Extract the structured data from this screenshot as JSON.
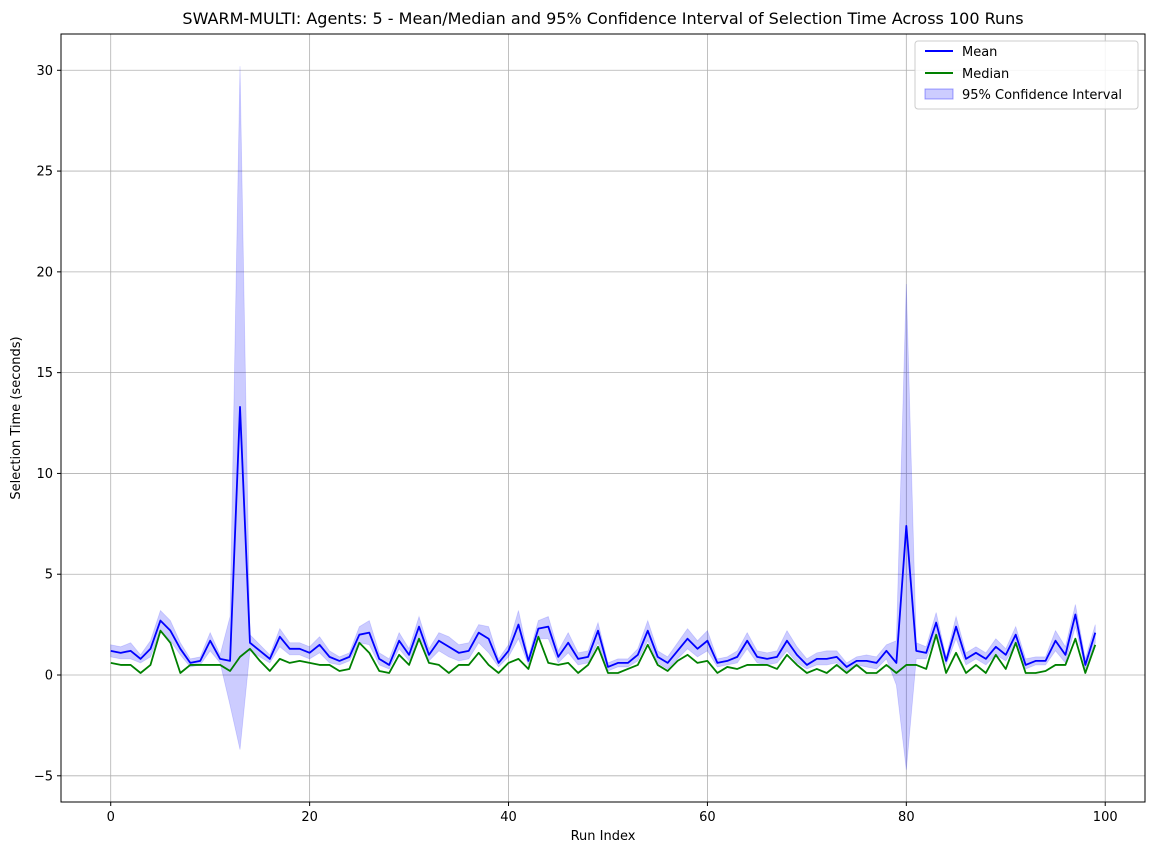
{
  "chart_data": {
    "type": "line",
    "title": "SWARM-MULTI: Agents: 5 - Mean/Median and 95% Confidence Interval of Selection Time Across 100 Runs",
    "xlabel": "Run Index",
    "ylabel": "Selection Time (seconds)",
    "xlim": [
      -5,
      104
    ],
    "ylim": [
      -6.3,
      31.8
    ],
    "xticks": [
      0,
      20,
      40,
      60,
      80,
      100
    ],
    "yticks": [
      -5,
      0,
      5,
      10,
      15,
      20,
      25,
      30
    ],
    "ytick_labels": [
      "−5",
      "0",
      "5",
      "10",
      "15",
      "20",
      "25",
      "30"
    ],
    "grid": true,
    "legend_position": "top-right",
    "colors": {
      "mean": "#0000ff",
      "median": "#008000",
      "ci_fill": "#0000ff"
    },
    "series": [
      {
        "name": "Mean",
        "values": [
          1.2,
          1.1,
          1.2,
          0.8,
          1.3,
          2.7,
          2.2,
          1.3,
          0.6,
          0.7,
          1.7,
          0.8,
          0.7,
          13.3,
          1.6,
          1.2,
          0.8,
          1.9,
          1.3,
          1.3,
          1.1,
          1.5,
          0.9,
          0.7,
          0.9,
          2.0,
          2.1,
          0.8,
          0.5,
          1.7,
          1.0,
          2.4,
          1.0,
          1.7,
          1.4,
          1.1,
          1.2,
          2.1,
          1.8,
          0.6,
          1.2,
          2.5,
          0.7,
          2.3,
          2.4,
          0.9,
          1.6,
          0.8,
          0.9,
          2.2,
          0.4,
          0.6,
          0.6,
          1.0,
          2.2,
          0.9,
          0.6,
          1.2,
          1.8,
          1.3,
          1.7,
          0.6,
          0.7,
          0.9,
          1.7,
          0.9,
          0.8,
          0.9,
          1.7,
          1.0,
          0.5,
          0.8,
          0.8,
          0.9,
          0.4,
          0.7,
          0.7,
          0.6,
          1.2,
          0.6,
          7.4,
          1.2,
          1.1,
          2.6,
          0.7,
          2.4,
          0.8,
          1.1,
          0.8,
          1.4,
          1.0,
          2.0,
          0.5,
          0.7,
          0.7,
          1.7,
          1.0,
          3.0,
          0.5,
          2.1
        ]
      },
      {
        "name": "Median",
        "values": [
          0.6,
          0.5,
          0.5,
          0.1,
          0.5,
          2.2,
          1.6,
          0.1,
          0.5,
          0.5,
          0.5,
          0.5,
          0.2,
          0.9,
          1.3,
          0.7,
          0.2,
          0.8,
          0.6,
          0.7,
          0.6,
          0.5,
          0.5,
          0.2,
          0.3,
          1.6,
          1.1,
          0.2,
          0.1,
          1.0,
          0.5,
          1.8,
          0.6,
          0.5,
          0.1,
          0.5,
          0.5,
          1.1,
          0.5,
          0.1,
          0.6,
          0.8,
          0.3,
          1.9,
          0.6,
          0.5,
          0.6,
          0.1,
          0.5,
          1.4,
          0.1,
          0.1,
          0.3,
          0.5,
          1.5,
          0.5,
          0.2,
          0.7,
          1.0,
          0.6,
          0.7,
          0.1,
          0.4,
          0.3,
          0.5,
          0.5,
          0.5,
          0.3,
          1.0,
          0.5,
          0.1,
          0.3,
          0.1,
          0.5,
          0.1,
          0.5,
          0.1,
          0.1,
          0.5,
          0.1,
          0.5,
          0.5,
          0.3,
          2.0,
          0.1,
          1.1,
          0.1,
          0.5,
          0.1,
          1.0,
          0.3,
          1.6,
          0.1,
          0.1,
          0.2,
          0.5,
          0.5,
          1.8,
          0.1,
          1.5
        ]
      },
      {
        "name": "95% Confidence Interval",
        "lower": [
          0.9,
          0.8,
          0.8,
          0.6,
          0.9,
          2.2,
          1.7,
          1.0,
          0.4,
          0.5,
          1.2,
          0.6,
          -1.5,
          -3.7,
          1.2,
          0.9,
          0.6,
          1.4,
          1.0,
          1.0,
          0.8,
          1.1,
          0.6,
          0.5,
          0.7,
          1.6,
          1.5,
          0.5,
          0.3,
          1.3,
          0.7,
          1.8,
          0.7,
          1.2,
          0.9,
          0.7,
          0.8,
          1.6,
          1.1,
          0.4,
          0.9,
          1.8,
          0.5,
          1.8,
          1.8,
          0.6,
          1.1,
          0.5,
          0.6,
          1.6,
          0.2,
          0.4,
          0.4,
          0.7,
          1.7,
          0.6,
          0.3,
          0.8,
          1.3,
          0.9,
          1.2,
          0.4,
          0.5,
          0.6,
          1.3,
          0.6,
          0.5,
          0.6,
          1.2,
          0.6,
          0.3,
          0.5,
          0.5,
          0.6,
          0.2,
          0.5,
          0.4,
          0.3,
          0.8,
          -0.5,
          -4.7,
          0.8,
          0.8,
          2.0,
          0.5,
          1.8,
          0.5,
          0.8,
          0.5,
          1.0,
          0.7,
          1.5,
          0.3,
          0.5,
          0.5,
          1.2,
          0.6,
          2.4,
          0.3,
          1.6
        ],
        "upper": [
          1.5,
          1.4,
          1.6,
          1.0,
          1.7,
          3.2,
          2.7,
          1.6,
          0.8,
          0.9,
          2.1,
          1.0,
          2.9,
          30.2,
          2.0,
          1.5,
          1.0,
          2.3,
          1.6,
          1.6,
          1.4,
          1.9,
          1.2,
          0.9,
          1.1,
          2.4,
          2.7,
          1.1,
          0.8,
          2.1,
          1.3,
          2.9,
          1.3,
          2.1,
          1.9,
          1.5,
          1.6,
          2.5,
          2.4,
          0.8,
          1.5,
          3.2,
          0.9,
          2.7,
          2.9,
          1.2,
          2.1,
          1.1,
          1.2,
          2.6,
          0.6,
          0.8,
          0.8,
          1.3,
          2.7,
          1.2,
          0.9,
          1.6,
          2.3,
          1.7,
          2.2,
          0.8,
          0.9,
          1.2,
          2.1,
          1.2,
          1.1,
          1.2,
          2.2,
          1.4,
          0.8,
          1.1,
          1.2,
          1.2,
          0.6,
          0.9,
          1.0,
          0.9,
          1.5,
          1.7,
          19.4,
          1.6,
          1.4,
          3.1,
          0.9,
          2.9,
          1.1,
          1.4,
          1.1,
          1.8,
          1.3,
          2.4,
          0.8,
          0.9,
          0.9,
          2.2,
          1.4,
          3.5,
          0.8,
          2.5
        ]
      }
    ]
  }
}
